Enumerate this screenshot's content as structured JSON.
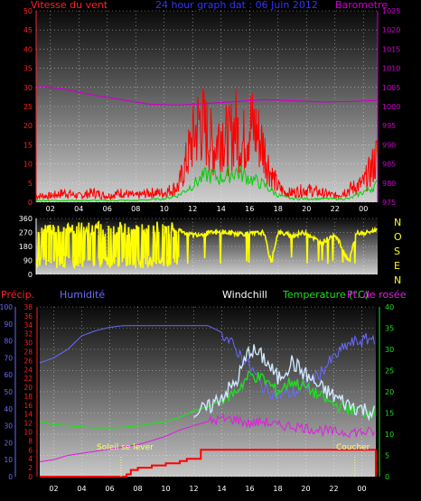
{
  "header": {
    "wind_title": "Vitesse du vent",
    "graph_title": "24 hour graph dat : 06 Juin 2012",
    "baro_title": "Barometre"
  },
  "labels": {
    "precip": "Précip.",
    "humidity": "Humidité",
    "windchill": "Windchill",
    "temperature": "Temperature (°C)",
    "dewpoint": "Pt. de rosée",
    "sunrise": "Soleil se lever",
    "sunset": "Coucher"
  },
  "compass": [
    "N",
    "O",
    "S",
    "E",
    "N"
  ],
  "colors": {
    "wind": "#ff0000",
    "gust": "#00d000",
    "baro": "#cc00cc",
    "direction": "#ffff00",
    "humidity": "#6a6aff",
    "temperature": "#22dd22",
    "windchill": "#cfe8ff",
    "dewpoint": "#dd22dd",
    "rain": "#ff0000",
    "sun": "#ffff66",
    "grid": "#ffffff",
    "title": "#3333ff"
  },
  "chart_data": [
    {
      "type": "line",
      "name": "wind-barometer",
      "x_ticks": [
        "02",
        "04",
        "06",
        "08",
        "10",
        "12",
        "14",
        "16",
        "18",
        "20",
        "22",
        "00"
      ],
      "left_axis": {
        "ticks": [
          "0",
          "5",
          "10",
          "15",
          "20",
          "25",
          "30",
          "35",
          "40",
          "45",
          "50"
        ],
        "ylim": [
          0,
          50
        ]
      },
      "right_axis": {
        "ticks": [
          "975",
          "980",
          "985",
          "990",
          "995",
          "1000",
          "1005",
          "1010",
          "1015",
          "1020",
          "1025"
        ],
        "ylim": [
          975,
          1025
        ]
      },
      "series": [
        {
          "values": [
            [
              1,
              2
            ],
            [
              2,
              3
            ],
            [
              3,
              2
            ],
            [
              4,
              3
            ],
            [
              5,
              2
            ],
            [
              6,
              3
            ],
            [
              7,
              2
            ],
            [
              8,
              3
            ],
            [
              9,
              3
            ],
            [
              10,
              5
            ],
            [
              10.5,
              12
            ],
            [
              11,
              20
            ],
            [
              11.5,
              26
            ],
            [
              12,
              22
            ],
            [
              12.5,
              17
            ],
            [
              13,
              23
            ],
            [
              13.5,
              19
            ],
            [
              14,
              24
            ],
            [
              14.5,
              18
            ],
            [
              15,
              25
            ],
            [
              15.5,
              22
            ],
            [
              16,
              17
            ],
            [
              16.5,
              9
            ],
            [
              17,
              5
            ],
            [
              17.5,
              3
            ],
            [
              18,
              3
            ],
            [
              19,
              4
            ],
            [
              20,
              3
            ],
            [
              21,
              2
            ],
            [
              22,
              4
            ],
            [
              23,
              6
            ],
            [
              23.5,
              10
            ],
            [
              24,
              15
            ]
          ]
        },
        {
          "values": [
            [
              1,
              0.5
            ],
            [
              3,
              0.5
            ],
            [
              5,
              0.5
            ],
            [
              7,
              0.5
            ],
            [
              9,
              1
            ],
            [
              10,
              2
            ],
            [
              11,
              5
            ],
            [
              12,
              8
            ],
            [
              13,
              7
            ],
            [
              14,
              9
            ],
            [
              15,
              7
            ],
            [
              16,
              5
            ],
            [
              17,
              2
            ],
            [
              18,
              1
            ],
            [
              20,
              1
            ],
            [
              22,
              1
            ],
            [
              23,
              3
            ],
            [
              24,
              5
            ]
          ]
        },
        {
          "values": [
            [
              0,
              1005.5
            ],
            [
              2,
              1004.5
            ],
            [
              4,
              1003
            ],
            [
              6,
              1001.8
            ],
            [
              8,
              1000.6
            ],
            [
              10,
              1000.4
            ],
            [
              12,
              1000.8
            ],
            [
              14,
              1001.3
            ],
            [
              16,
              1001.8
            ],
            [
              18,
              1001.5
            ],
            [
              20,
              1001.2
            ],
            [
              22,
              1001.3
            ],
            [
              24,
              1001.6
            ]
          ]
        }
      ]
    },
    {
      "type": "scatter",
      "name": "wind-direction",
      "x_ticks": [
        "02",
        "04",
        "06",
        "08",
        "10",
        "12",
        "14",
        "16",
        "18",
        "20",
        "22",
        "00"
      ],
      "left_axis": {
        "ticks": [
          "0",
          "90",
          "180",
          "270",
          "360"
        ],
        "ylim": [
          0,
          360
        ]
      },
      "values": [
        [
          0,
          320
        ],
        [
          0.5,
          120
        ],
        [
          1,
          90
        ],
        [
          1.5,
          300
        ],
        [
          2,
          40
        ],
        [
          2.5,
          270
        ],
        [
          3,
          90
        ],
        [
          3.5,
          310
        ],
        [
          4,
          60
        ],
        [
          4.5,
          280
        ],
        [
          5,
          20
        ],
        [
          5.5,
          300
        ],
        [
          6,
          80
        ],
        [
          6.5,
          260
        ],
        [
          7,
          60
        ],
        [
          7.5,
          300
        ],
        [
          8,
          50
        ],
        [
          8.5,
          280
        ],
        [
          9,
          70
        ],
        [
          9.5,
          300
        ],
        [
          10,
          280
        ],
        [
          11,
          255
        ],
        [
          12,
          265
        ],
        [
          13,
          270
        ],
        [
          14,
          265
        ],
        [
          15,
          260
        ],
        [
          16,
          270
        ],
        [
          16.5,
          80
        ],
        [
          17,
          270
        ],
        [
          18,
          250
        ],
        [
          19,
          270
        ],
        [
          20,
          200
        ],
        [
          21,
          260
        ],
        [
          22,
          80
        ],
        [
          22.5,
          270
        ],
        [
          23,
          260
        ],
        [
          24,
          290
        ]
      ]
    },
    {
      "type": "line",
      "name": "humidity-temperature",
      "x_ticks": [
        "02",
        "04",
        "06",
        "08",
        "10",
        "12",
        "14",
        "16",
        "18",
        "20",
        "22",
        "00"
      ],
      "precip_axis": {
        "ticks": [
          "0",
          "2",
          "4",
          "6",
          "8",
          "10",
          "12",
          "14",
          "16",
          "18",
          "20",
          "22",
          "24",
          "26",
          "28",
          "30",
          "32",
          "34",
          "36",
          "38"
        ],
        "ylim": [
          0,
          38
        ]
      },
      "humidity_axis": {
        "ticks": [
          "0",
          "10",
          "20",
          "30",
          "40",
          "50",
          "60",
          "70",
          "80",
          "90",
          "100"
        ],
        "ylim": [
          0,
          100
        ]
      },
      "temperature_axis": {
        "ticks": [
          "0",
          "5",
          "10",
          "15",
          "20",
          "25",
          "30",
          "35",
          "40"
        ],
        "ylim": [
          0,
          40
        ]
      },
      "series": [
        {
          "axis": "humidity",
          "values": [
            [
              0,
              67
            ],
            [
              1,
              70
            ],
            [
              2,
              75
            ],
            [
              3,
              83
            ],
            [
              4,
              86
            ],
            [
              5,
              88
            ],
            [
              6,
              89
            ],
            [
              7,
              89
            ],
            [
              8,
              89
            ],
            [
              9,
              89
            ],
            [
              10,
              89
            ],
            [
              11,
              89
            ],
            [
              12,
              89
            ],
            [
              13,
              85
            ],
            [
              14,
              75
            ],
            [
              15,
              65
            ],
            [
              16,
              52
            ],
            [
              17,
              48
            ],
            [
              18,
              49
            ],
            [
              19,
              53
            ],
            [
              20,
              61
            ],
            [
              21,
              70
            ],
            [
              22,
              78
            ],
            [
              23,
              80
            ],
            [
              24,
              82
            ]
          ]
        },
        {
          "axis": "temperature",
          "values": [
            [
              0,
              13
            ],
            [
              1,
              12.3
            ],
            [
              2,
              12
            ],
            [
              3,
              11.7
            ],
            [
              4,
              11.5
            ],
            [
              5,
              11.5
            ],
            [
              6,
              11.6
            ],
            [
              7,
              12
            ],
            [
              8,
              12.5
            ],
            [
              9,
              13
            ],
            [
              10,
              14
            ],
            [
              11,
              15.5
            ],
            [
              12,
              16.5
            ],
            [
              13,
              18
            ],
            [
              14,
              20
            ],
            [
              15,
              24
            ],
            [
              16,
              23
            ],
            [
              17,
              20
            ],
            [
              18,
              22.5
            ],
            [
              19,
              21
            ],
            [
              20,
              19
            ],
            [
              21,
              17
            ],
            [
              22,
              16
            ],
            [
              23,
              15.5
            ],
            [
              24,
              15
            ]
          ]
        },
        {
          "axis": "temperature",
          "values": [
            [
              11,
              15
            ],
            [
              12,
              16
            ],
            [
              13,
              19
            ],
            [
              14,
              22
            ],
            [
              15,
              30
            ],
            [
              16,
              28
            ],
            [
              17,
              23
            ],
            [
              18,
              27
            ],
            [
              19,
              24
            ],
            [
              20,
              21
            ],
            [
              21,
              19
            ],
            [
              22,
              17
            ],
            [
              23,
              16
            ],
            [
              24,
              15
            ]
          ]
        },
        {
          "axis": "temperature",
          "values": [
            [
              0,
              3.5
            ],
            [
              1,
              4
            ],
            [
              2,
              5
            ],
            [
              3,
              5.5
            ],
            [
              4,
              6
            ],
            [
              5,
              6.5
            ],
            [
              6,
              7
            ],
            [
              7,
              7.5
            ],
            [
              8,
              8.5
            ],
            [
              9,
              9.5
            ],
            [
              10,
              11
            ],
            [
              11,
              12
            ],
            [
              12,
              13
            ],
            [
              13,
              13.5
            ],
            [
              14,
              13.5
            ],
            [
              15,
              12.5
            ],
            [
              16,
              13
            ],
            [
              17,
              12
            ],
            [
              18,
              12
            ],
            [
              19,
              11.5
            ],
            [
              20,
              11
            ],
            [
              21,
              10.5
            ],
            [
              22,
              10.5
            ],
            [
              23,
              10.5
            ],
            [
              24,
              10.5
            ]
          ]
        },
        {
          "axis": "precip",
          "values": [
            [
              0,
              0
            ],
            [
              6.2,
              0
            ],
            [
              6.2,
              0.5
            ],
            [
              6.5,
              1.5
            ],
            [
              7,
              2
            ],
            [
              8,
              2.5
            ],
            [
              9,
              3
            ],
            [
              10,
              3.5
            ],
            [
              10.5,
              4
            ],
            [
              11,
              4
            ],
            [
              11.5,
              6
            ],
            [
              12,
              6
            ],
            [
              13,
              6
            ],
            [
              14,
              6
            ],
            [
              16,
              6
            ],
            [
              18,
              6
            ],
            [
              20,
              6
            ],
            [
              22,
              6
            ],
            [
              24,
              6
            ]
          ]
        }
      ]
    }
  ]
}
